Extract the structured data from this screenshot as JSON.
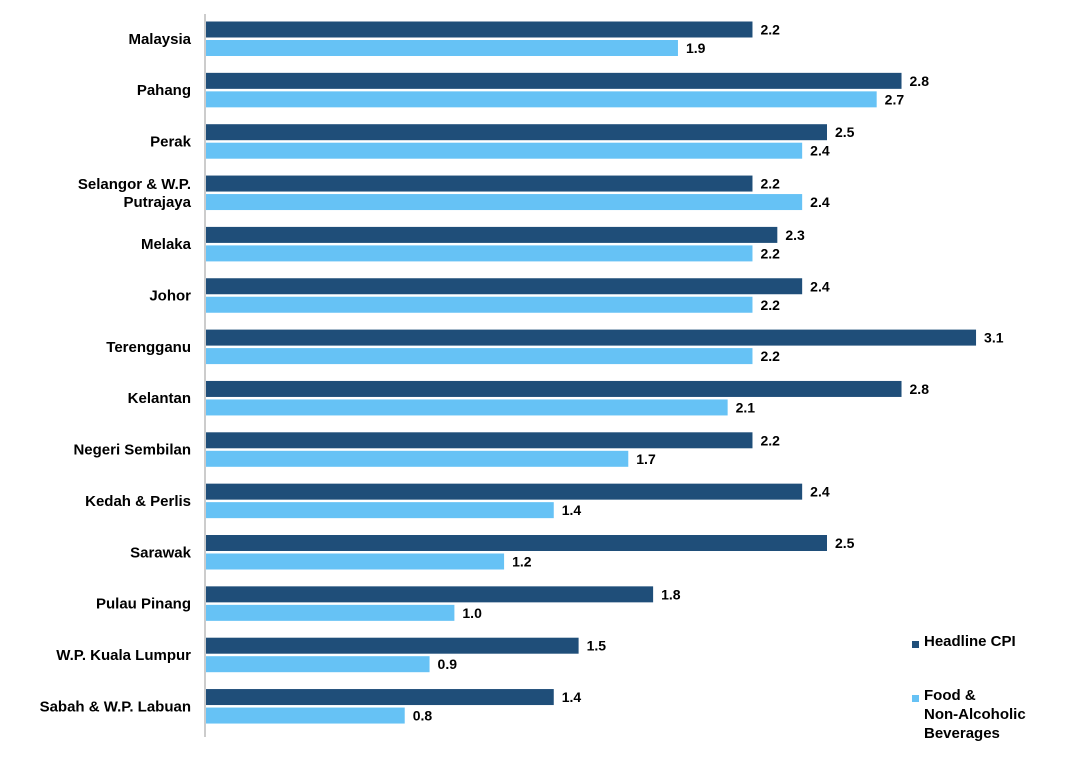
{
  "chart_data": {
    "type": "bar",
    "orientation": "horizontal",
    "title": "",
    "xlabel": "",
    "ylabel": "",
    "xlim": [
      0,
      3.1
    ],
    "grid": false,
    "legend_position": "bottom-right",
    "categories": [
      [
        "Malaysia"
      ],
      [
        "Pahang"
      ],
      [
        "Perak"
      ],
      [
        "Selangor & W.P.",
        "Putrajaya"
      ],
      [
        "Melaka"
      ],
      [
        "Johor"
      ],
      [
        "Terengganu"
      ],
      [
        "Kelantan"
      ],
      [
        "Negeri Sembilan"
      ],
      [
        "Kedah & Perlis"
      ],
      [
        "Sarawak"
      ],
      [
        "Pulau Pinang"
      ],
      [
        "W.P. Kuala Lumpur"
      ],
      [
        "Sabah & W.P. Labuan"
      ]
    ],
    "series": [
      {
        "name": [
          "Headline CPI"
        ],
        "color": "#1f4e79",
        "values": [
          2.2,
          2.8,
          2.5,
          2.2,
          2.3,
          2.4,
          3.1,
          2.8,
          2.2,
          2.4,
          2.5,
          1.8,
          1.5,
          1.4
        ],
        "labels": [
          "2.2",
          "2.8",
          "2.5",
          "2.2",
          "2.3",
          "2.4",
          "3.1",
          "2.8",
          "2.2",
          "2.4",
          "2.5",
          "1.8",
          "1.5",
          "1.4"
        ]
      },
      {
        "name": [
          "Food &",
          "Non-Alcoholic",
          "Beverages"
        ],
        "color": "#66c2f5",
        "values": [
          1.9,
          2.7,
          2.4,
          2.4,
          2.2,
          2.2,
          2.2,
          2.1,
          1.7,
          1.4,
          1.2,
          1.0,
          0.9,
          0.8
        ],
        "labels": [
          "1.9",
          "2.7",
          "2.4",
          "2.4",
          "2.2",
          "2.2",
          "2.2",
          "2.1",
          "1.7",
          "1.4",
          "1.2",
          "1.0",
          "0.9",
          "0.8"
        ]
      }
    ]
  }
}
